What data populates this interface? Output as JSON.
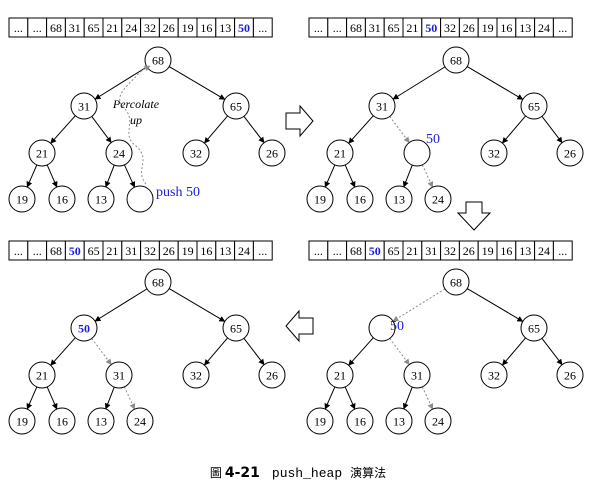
{
  "colors": {
    "ink": "#000000",
    "highlight": "#1a1adb",
    "node_fill": "#ffffff",
    "dashed_edge": "#8c8c8c"
  },
  "panels": [
    {
      "id": "top-left",
      "array": [
        {
          "v": "...",
          "hl": false
        },
        {
          "v": "...",
          "hl": false
        },
        {
          "v": "68",
          "hl": false
        },
        {
          "v": "31",
          "hl": false
        },
        {
          "v": "65",
          "hl": false
        },
        {
          "v": "21",
          "hl": false
        },
        {
          "v": "24",
          "hl": false
        },
        {
          "v": "32",
          "hl": false
        },
        {
          "v": "26",
          "hl": false
        },
        {
          "v": "19",
          "hl": false
        },
        {
          "v": "16",
          "hl": false
        },
        {
          "v": "13",
          "hl": false
        },
        {
          "v": "50",
          "hl": true
        },
        {
          "v": "...",
          "hl": false
        }
      ],
      "nodes": [
        {
          "id": "a",
          "label": "68"
        },
        {
          "id": "b",
          "label": "31"
        },
        {
          "id": "c",
          "label": "65"
        },
        {
          "id": "d",
          "label": "21"
        },
        {
          "id": "e",
          "label": "24"
        },
        {
          "id": "f",
          "label": "32"
        },
        {
          "id": "g",
          "label": "26"
        },
        {
          "id": "h",
          "label": "19"
        },
        {
          "id": "i",
          "label": "16"
        },
        {
          "id": "j",
          "label": "13"
        },
        {
          "id": "k",
          "label": ""
        }
      ],
      "side_labels": [
        {
          "text": "push 50",
          "color": "highlight"
        }
      ],
      "annotation": {
        "line1": "Percolate",
        "line2": "up"
      }
    },
    {
      "id": "top-right",
      "array": [
        {
          "v": "...",
          "hl": false
        },
        {
          "v": "...",
          "hl": false
        },
        {
          "v": "68",
          "hl": false
        },
        {
          "v": "31",
          "hl": false
        },
        {
          "v": "65",
          "hl": false
        },
        {
          "v": "21",
          "hl": false
        },
        {
          "v": "50",
          "hl": true
        },
        {
          "v": "32",
          "hl": false
        },
        {
          "v": "26",
          "hl": false
        },
        {
          "v": "19",
          "hl": false
        },
        {
          "v": "16",
          "hl": false
        },
        {
          "v": "13",
          "hl": false
        },
        {
          "v": "24",
          "hl": false
        },
        {
          "v": "...",
          "hl": false
        }
      ],
      "nodes": [
        {
          "id": "a",
          "label": "68"
        },
        {
          "id": "b",
          "label": "31"
        },
        {
          "id": "c",
          "label": "65"
        },
        {
          "id": "d",
          "label": "21"
        },
        {
          "id": "e",
          "label": ""
        },
        {
          "id": "f",
          "label": "32"
        },
        {
          "id": "g",
          "label": "26"
        },
        {
          "id": "h",
          "label": "19"
        },
        {
          "id": "i",
          "label": "16"
        },
        {
          "id": "j",
          "label": "13"
        },
        {
          "id": "k",
          "label": "24"
        }
      ],
      "side_labels": [
        {
          "text": "50",
          "color": "highlight"
        }
      ]
    },
    {
      "id": "bottom-right",
      "array": [
        {
          "v": "...",
          "hl": false
        },
        {
          "v": "...",
          "hl": false
        },
        {
          "v": "68",
          "hl": false
        },
        {
          "v": "50",
          "hl": true
        },
        {
          "v": "65",
          "hl": false
        },
        {
          "v": "21",
          "hl": false
        },
        {
          "v": "31",
          "hl": false
        },
        {
          "v": "32",
          "hl": false
        },
        {
          "v": "26",
          "hl": false
        },
        {
          "v": "19",
          "hl": false
        },
        {
          "v": "16",
          "hl": false
        },
        {
          "v": "13",
          "hl": false
        },
        {
          "v": "24",
          "hl": false
        },
        {
          "v": "...",
          "hl": false
        }
      ],
      "nodes": [
        {
          "id": "a",
          "label": "68"
        },
        {
          "id": "b",
          "label": ""
        },
        {
          "id": "c",
          "label": "65"
        },
        {
          "id": "d",
          "label": "21"
        },
        {
          "id": "e",
          "label": "31"
        },
        {
          "id": "f",
          "label": "32"
        },
        {
          "id": "g",
          "label": "26"
        },
        {
          "id": "h",
          "label": "19"
        },
        {
          "id": "i",
          "label": "16"
        },
        {
          "id": "j",
          "label": "13"
        },
        {
          "id": "k",
          "label": "24"
        }
      ],
      "side_labels": [
        {
          "text": "50",
          "color": "highlight"
        }
      ]
    },
    {
      "id": "bottom-left",
      "array": [
        {
          "v": "...",
          "hl": false
        },
        {
          "v": "...",
          "hl": false
        },
        {
          "v": "68",
          "hl": false
        },
        {
          "v": "50",
          "hl": true
        },
        {
          "v": "65",
          "hl": false
        },
        {
          "v": "21",
          "hl": false
        },
        {
          "v": "31",
          "hl": false
        },
        {
          "v": "32",
          "hl": false
        },
        {
          "v": "26",
          "hl": false
        },
        {
          "v": "19",
          "hl": false
        },
        {
          "v": "16",
          "hl": false
        },
        {
          "v": "13",
          "hl": false
        },
        {
          "v": "24",
          "hl": false
        },
        {
          "v": "...",
          "hl": false
        }
      ],
      "nodes": [
        {
          "id": "a",
          "label": "68"
        },
        {
          "id": "b",
          "label": "50",
          "hl": true
        },
        {
          "id": "c",
          "label": "65"
        },
        {
          "id": "d",
          "label": "21"
        },
        {
          "id": "e",
          "label": "31"
        },
        {
          "id": "f",
          "label": "32"
        },
        {
          "id": "g",
          "label": "26"
        },
        {
          "id": "h",
          "label": "19"
        },
        {
          "id": "i",
          "label": "16"
        },
        {
          "id": "j",
          "label": "13"
        },
        {
          "id": "k",
          "label": "24"
        }
      ],
      "side_labels": []
    }
  ],
  "flow_arrows": [
    {
      "name": "arrow-right-icon",
      "direction": "right"
    },
    {
      "name": "arrow-down-icon",
      "direction": "down"
    },
    {
      "name": "arrow-left-icon",
      "direction": "left"
    }
  ],
  "caption": {
    "prefix": "圖",
    "number": "4-21",
    "function_name": "push_heap",
    "suffix": "演算法"
  }
}
